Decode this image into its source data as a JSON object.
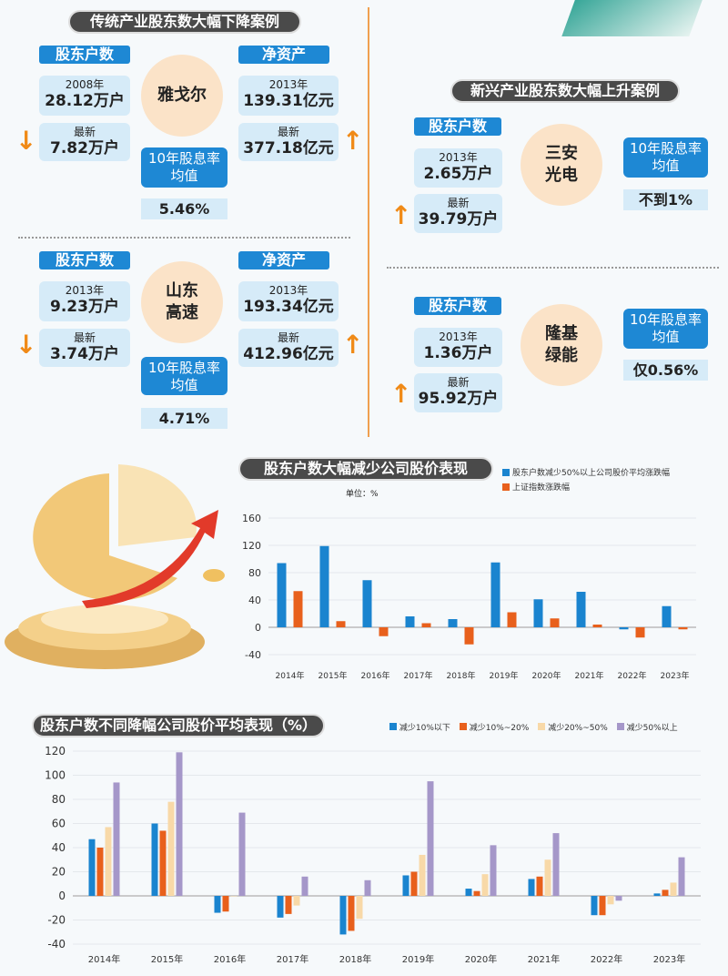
{
  "traditional": {
    "title": "传统产业股东数大幅下降案例",
    "cases": [
      {
        "name": "雅戈尔",
        "holders_label": "股东户数",
        "holders_start_year": "2008年",
        "holders_start": "28.12万户",
        "holders_latest_label": "最新",
        "holders_latest": "7.82万户",
        "assets_label": "净资产",
        "assets_start_year": "2013年",
        "assets_start": "139.31亿元",
        "assets_latest_label": "最新",
        "assets_latest": "377.18亿元",
        "rate_label": "10年股息率\n均值",
        "rate_value": "5.46%"
      },
      {
        "name": "山东\n高速",
        "holders_label": "股东户数",
        "holders_start_year": "2013年",
        "holders_start": "9.23万户",
        "holders_latest_label": "最新",
        "holders_latest": "3.74万户",
        "assets_label": "净资产",
        "assets_start_year": "2013年",
        "assets_start": "193.34亿元",
        "assets_latest_label": "最新",
        "assets_latest": "412.96亿元",
        "rate_label": "10年股息率\n均值",
        "rate_value": "4.71%"
      }
    ]
  },
  "emerging": {
    "title": "新兴产业股东数大幅上升案例",
    "cases": [
      {
        "name": "三安\n光电",
        "holders_label": "股东户数",
        "holders_start_year": "2013年",
        "holders_start": "2.65万户",
        "holders_latest_label": "最新",
        "holders_latest": "39.79万户",
        "rate_label": "10年股息率\n均值",
        "rate_value": "不到1%"
      },
      {
        "name": "隆基\n绿能",
        "holders_label": "股东户数",
        "holders_start_year": "2013年",
        "holders_start": "1.36万户",
        "holders_latest_label": "最新",
        "holders_latest": "95.92万户",
        "rate_label": "10年股息率\n均值",
        "rate_value": "仅0.56%"
      }
    ]
  },
  "chart_data": [
    {
      "type": "bar",
      "title": "股东户数大幅减少公司股价表现",
      "unit": "单位：%",
      "categories": [
        "2014年",
        "2015年",
        "2016年",
        "2017年",
        "2018年",
        "2019年",
        "2020年",
        "2021年",
        "2022年",
        "2023年"
      ],
      "series": [
        {
          "name": "股东户数减少50%以上公司股价平均涨跌幅",
          "color": "#1a84cf",
          "values": [
            94,
            119,
            69,
            16,
            12,
            95,
            41,
            52,
            -3,
            31
          ]
        },
        {
          "name": "上证指数涨跌幅",
          "color": "#e8601c",
          "values": [
            53,
            9,
            -13,
            6,
            -25,
            22,
            13,
            4,
            -15,
            -3
          ]
        }
      ],
      "ylim": [
        -40,
        160
      ],
      "yticks": [
        -40,
        0,
        40,
        80,
        120,
        160
      ],
      "grid": true,
      "legend": "top-right"
    },
    {
      "type": "bar",
      "title": "股东户数不同降幅公司股价平均表现（%）",
      "categories": [
        "2014年",
        "2015年",
        "2016年",
        "2017年",
        "2018年",
        "2019年",
        "2020年",
        "2021年",
        "2022年",
        "2023年"
      ],
      "series": [
        {
          "name": "减少10%以下",
          "color": "#1a84cf",
          "values": [
            47,
            60,
            -14,
            -18,
            -32,
            17,
            6,
            14,
            -16,
            2
          ]
        },
        {
          "name": "减少10%~20%",
          "color": "#e8601c",
          "values": [
            40,
            54,
            -13,
            -15,
            -29,
            20,
            4,
            16,
            -16,
            5
          ]
        },
        {
          "name": "减少20%~50%",
          "color": "#f8d9a8",
          "values": [
            57,
            78,
            0,
            -8,
            -19,
            34,
            18,
            30,
            -7,
            11
          ]
        },
        {
          "name": "减少50%以上",
          "color": "#a597c9",
          "values": [
            94,
            119,
            69,
            16,
            13,
            95,
            42,
            52,
            -4,
            32
          ]
        }
      ],
      "ylim": [
        -40,
        120
      ],
      "yticks": [
        -40,
        -20,
        0,
        20,
        40,
        60,
        80,
        100,
        120
      ],
      "grid": true,
      "legend": "top-right"
    }
  ]
}
